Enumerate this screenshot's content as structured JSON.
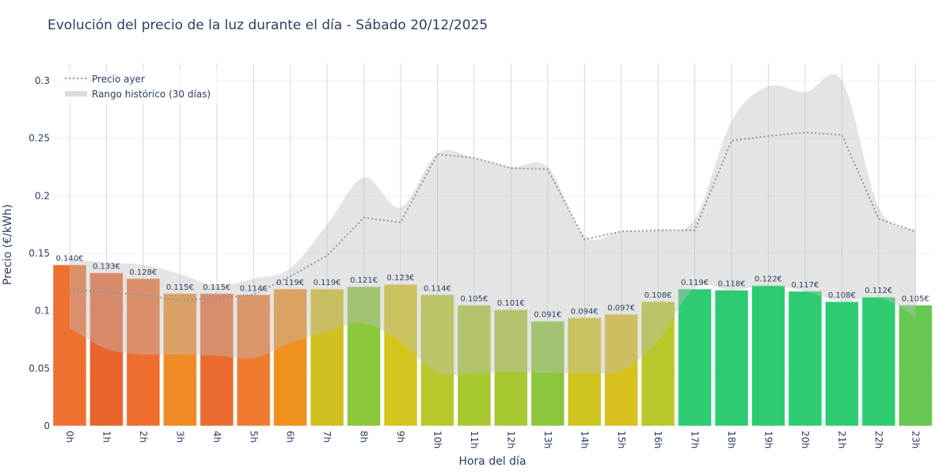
{
  "chart_data": {
    "type": "bar",
    "title": "Evolución del precio de la luz durante el día - Sábado 20/12/2025",
    "xlabel": "Hora del día",
    "ylabel": "Precio (€/kWh)",
    "ylim": [
      0,
      0.315
    ],
    "yticks": [
      "0",
      "0.05",
      "0.1",
      "0.15",
      "0.2",
      "0.25",
      "0.3"
    ],
    "ytick_values": [
      0,
      0.05,
      0.1,
      0.15,
      0.2,
      0.25,
      0.3
    ],
    "categories": [
      "0h",
      "1h",
      "2h",
      "3h",
      "4h",
      "5h",
      "6h",
      "7h",
      "8h",
      "9h",
      "10h",
      "11h",
      "12h",
      "13h",
      "14h",
      "15h",
      "16h",
      "17h",
      "18h",
      "19h",
      "20h",
      "21h",
      "22h",
      "23h"
    ],
    "values": [
      0.14,
      0.133,
      0.128,
      0.115,
      0.115,
      0.114,
      0.119,
      0.119,
      0.121,
      0.123,
      0.114,
      0.105,
      0.101,
      0.091,
      0.094,
      0.097,
      0.108,
      0.119,
      0.118,
      0.122,
      0.117,
      0.108,
      0.112,
      0.105
    ],
    "labels": [
      "0.140€",
      "0.133€",
      "0.128€",
      "0.115€",
      "0.115€",
      "0.114€",
      "0.119€",
      "0.119€",
      "0.121€",
      "0.123€",
      "0.114€",
      "0.105€",
      "0.101€",
      "0.091€",
      "0.094€",
      "0.097€",
      "0.108€",
      "0.119€",
      "0.118€",
      "0.122€",
      "0.117€",
      "0.108€",
      "0.112€",
      "0.105€"
    ],
    "bar_colors": [
      "#f07030",
      "#e8652e",
      "#ee6d2e",
      "#f08a25",
      "#ea6a30",
      "#ee7a2e",
      "#f0901e",
      "#d0c020",
      "#8cc83c",
      "#d4c41e",
      "#b8c82a",
      "#a8c830",
      "#a8c832",
      "#8cc63c",
      "#d0c41e",
      "#d8c01e",
      "#b8c82a",
      "#2ecc71",
      "#2ecc71",
      "#2ecc71",
      "#2ecc71",
      "#2ecc71",
      "#2ecc71",
      "#66c850"
    ],
    "series": [
      {
        "name": "Precio ayer",
        "values": [
          0.119,
          0.116,
          0.114,
          0.109,
          0.111,
          0.114,
          0.13,
          0.148,
          0.181,
          0.177,
          0.236,
          0.233,
          0.224,
          0.223,
          0.162,
          0.169,
          0.17,
          0.17,
          0.248,
          0.252,
          0.255,
          0.253,
          0.18,
          0.169
        ]
      },
      {
        "name": "Rango histórico (30 días)",
        "upper": [
          0.145,
          0.142,
          0.14,
          0.132,
          0.122,
          0.128,
          0.137,
          0.175,
          0.216,
          0.19,
          0.237,
          0.233,
          0.225,
          0.225,
          0.165,
          0.169,
          0.17,
          0.18,
          0.265,
          0.295,
          0.29,
          0.3,
          0.19,
          0.17
        ],
        "lower": [
          0.085,
          0.067,
          0.062,
          0.062,
          0.061,
          0.059,
          0.072,
          0.082,
          0.089,
          0.073,
          0.046,
          0.046,
          0.047,
          0.046,
          0.046,
          0.048,
          0.074,
          0.12,
          0.118,
          0.122,
          0.117,
          0.108,
          0.112,
          0.095
        ]
      }
    ],
    "legend": "top-left",
    "grid": true
  }
}
